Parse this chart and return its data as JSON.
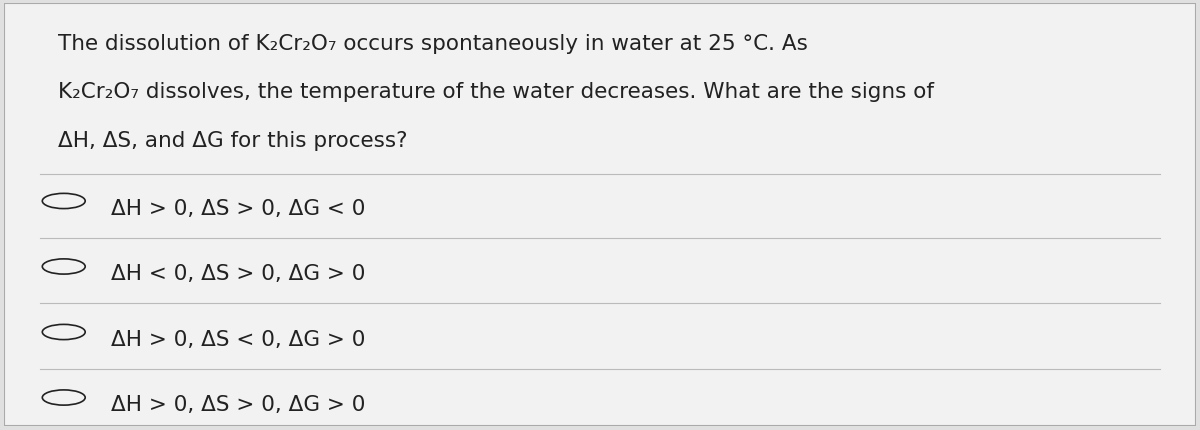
{
  "background_color": "#e0e0e0",
  "card_color": "#f2f2f2",
  "border_color": "#aaaaaa",
  "divider_color": "#bbbbbb",
  "text_color": "#222222",
  "question_lines": [
    "The dissolution of K₂Cr₂O₇ occurs spontaneously in water at 25 °C. As",
    "K₂Cr₂O₇ dissolves, the temperature of the water decreases. What are the signs of",
    "ΔH, ΔS, and ΔG for this process?"
  ],
  "options": [
    "ΔH > 0, ΔS > 0, ΔG < 0",
    "ΔH < 0, ΔS > 0, ΔG > 0",
    "ΔH > 0, ΔS < 0, ΔG > 0",
    "ΔH > 0, ΔS > 0, ΔG > 0"
  ],
  "font_size_question": 15.5,
  "font_size_options": 15.5,
  "figsize": [
    12.0,
    4.31
  ],
  "dpi": 100
}
